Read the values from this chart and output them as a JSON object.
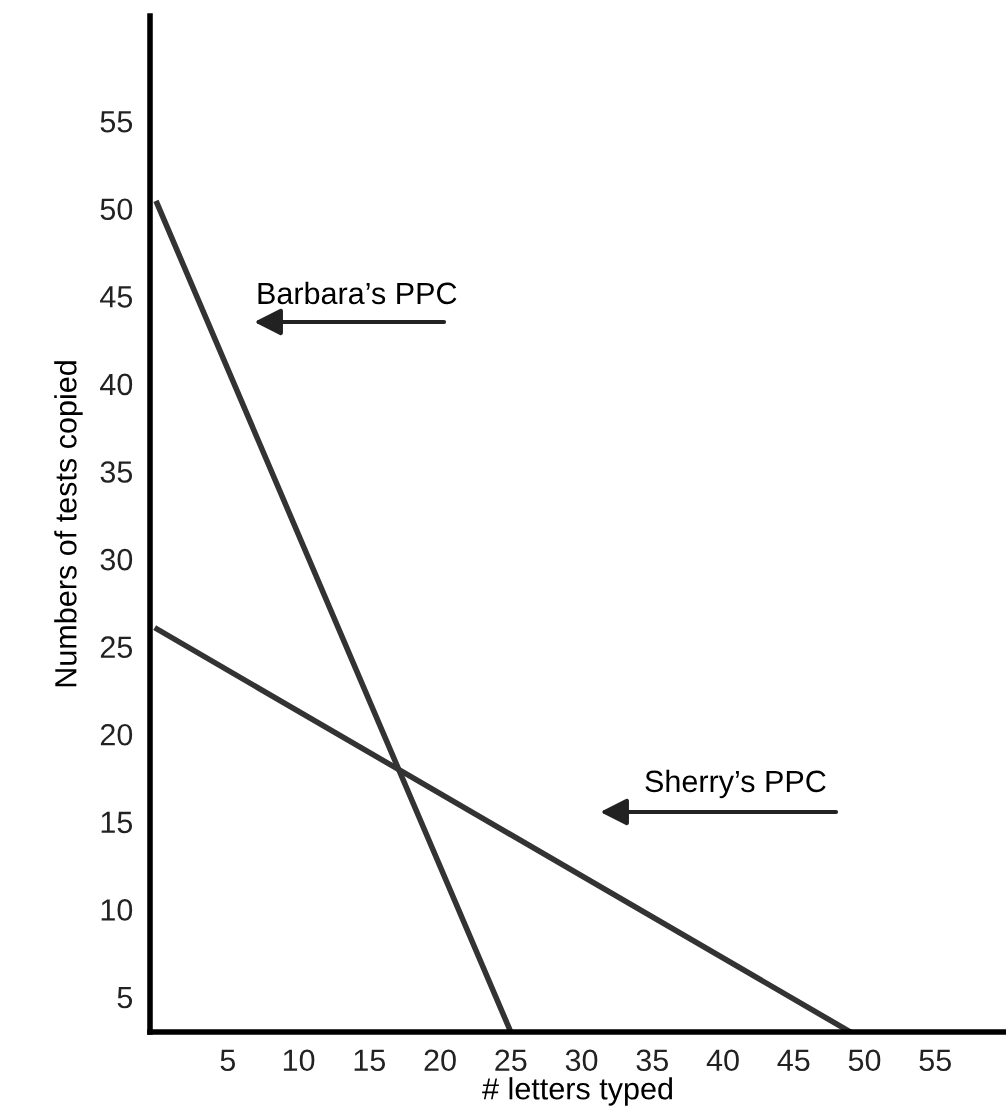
{
  "chart_data": {
    "type": "line",
    "xlabel": "# letters typed",
    "ylabel": "Numbers of tests copied",
    "xlim": [
      -0.5,
      60
    ],
    "ylim": [
      3,
      61
    ],
    "xticks": [
      5,
      10,
      15,
      20,
      25,
      30,
      35,
      40,
      45,
      50,
      55
    ],
    "yticks": [
      5,
      10,
      15,
      20,
      25,
      30,
      35,
      40,
      45,
      50,
      55
    ],
    "grid": false,
    "legend": false,
    "marker": "none",
    "line_style": "solid",
    "series": [
      {
        "x": [
          0,
          25
        ],
        "values": [
          50.3,
          3
        ],
        "color": "#333333"
      },
      {
        "x": [
          0,
          49
        ],
        "values": [
          26,
          3
        ],
        "color": "#333333"
      }
    ],
    "annotations": [
      "Barbara’s PPC",
      "Sherry’s PPC"
    ]
  }
}
